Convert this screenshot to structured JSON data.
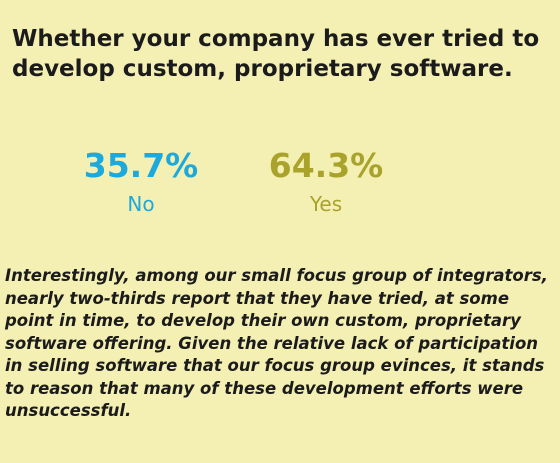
{
  "title": "Whether your company has ever tried to develop custom, proprietary software.",
  "chart_data": {
    "type": "table",
    "title": "Whether your company has ever tried to develop custom, proprietary software.",
    "categories": [
      "No",
      "Yes"
    ],
    "values": [
      35.7,
      64.3
    ],
    "value_labels": [
      "35.7%",
      "64.3%"
    ],
    "unit": "%",
    "colors": [
      "#1ea9dc",
      "#a9a32c"
    ]
  },
  "body_text": "Interestingly, among our small focus group of integrators, nearly two-thirds report that they have tried, at some point in time, to develop their own custom, proprietary software offering. Given the relative lack of participation in selling software that our focus group evinces, it stands to reason that many of these development efforts were unsuccessful."
}
